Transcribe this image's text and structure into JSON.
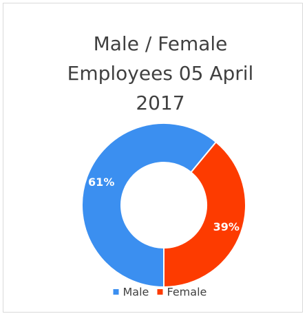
{
  "chart_data": {
    "type": "donut",
    "title": "Male / Female Employees 05 April 2017",
    "categories": [
      "Male",
      "Female"
    ],
    "values": [
      61,
      39
    ],
    "value_labels": [
      "61%",
      "39%"
    ],
    "colors": [
      "#3b8ff0",
      "#fd3b00"
    ],
    "legend": "bottom"
  }
}
